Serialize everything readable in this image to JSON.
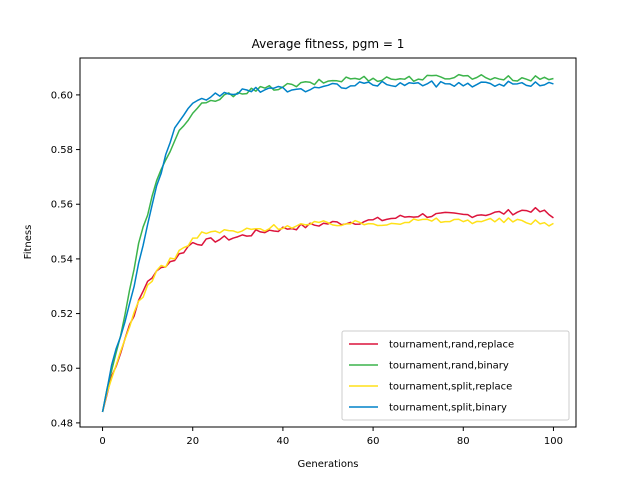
{
  "chart_data": {
    "type": "line",
    "title": "Average fitness, pgm = 1",
    "xlabel": "Generations",
    "ylabel": "Fitness",
    "xlim": [
      -5,
      105
    ],
    "ylim": [
      0.4785,
      0.6135
    ],
    "xticks": [
      0,
      20,
      40,
      60,
      80,
      100
    ],
    "xtick_labels": [
      "0",
      "20",
      "40",
      "60",
      "80",
      "100"
    ],
    "yticks": [
      0.48,
      0.5,
      0.52,
      0.54,
      0.56,
      0.58,
      0.6
    ],
    "ytick_labels": [
      "0.48",
      "0.50",
      "0.52",
      "0.54",
      "0.56",
      "0.58",
      "0.60"
    ],
    "grid": false,
    "legend_position": "lower-right",
    "x_start": 0,
    "x_end": 100,
    "series": [
      {
        "name": "tournament,rand,replace",
        "color": "#dc143c",
        "keypoints": [
          [
            0,
            0.484
          ],
          [
            2,
            0.497
          ],
          [
            4,
            0.506
          ],
          [
            6,
            0.516
          ],
          [
            8,
            0.524
          ],
          [
            10,
            0.532
          ],
          [
            12,
            0.535
          ],
          [
            14,
            0.538
          ],
          [
            16,
            0.54
          ],
          [
            18,
            0.543
          ],
          [
            20,
            0.546
          ],
          [
            22,
            0.546
          ],
          [
            25,
            0.547
          ],
          [
            30,
            0.548
          ],
          [
            35,
            0.55
          ],
          [
            40,
            0.551
          ],
          [
            50,
            0.553
          ],
          [
            60,
            0.554
          ],
          [
            70,
            0.556
          ],
          [
            80,
            0.556
          ],
          [
            90,
            0.557
          ],
          [
            95,
            0.558
          ],
          [
            98,
            0.557
          ],
          [
            100,
            0.555
          ]
        ]
      },
      {
        "name": "tournament,rand,binary",
        "color": "#3cb44b",
        "keypoints": [
          [
            0,
            0.484
          ],
          [
            2,
            0.5
          ],
          [
            4,
            0.512
          ],
          [
            6,
            0.528
          ],
          [
            8,
            0.545
          ],
          [
            10,
            0.557
          ],
          [
            12,
            0.568
          ],
          [
            14,
            0.576
          ],
          [
            16,
            0.584
          ],
          [
            18,
            0.589
          ],
          [
            20,
            0.593
          ],
          [
            22,
            0.596
          ],
          [
            25,
            0.598
          ],
          [
            30,
            0.601
          ],
          [
            35,
            0.602
          ],
          [
            40,
            0.603
          ],
          [
            45,
            0.604
          ],
          [
            50,
            0.605
          ],
          [
            55,
            0.606
          ],
          [
            60,
            0.606
          ],
          [
            70,
            0.606
          ],
          [
            80,
            0.607
          ],
          [
            90,
            0.606
          ],
          [
            100,
            0.606
          ]
        ]
      },
      {
        "name": "tournament,split,replace",
        "color": "#ffe119",
        "keypoints": [
          [
            0,
            0.484
          ],
          [
            2,
            0.496
          ],
          [
            4,
            0.506
          ],
          [
            6,
            0.516
          ],
          [
            8,
            0.524
          ],
          [
            10,
            0.53
          ],
          [
            12,
            0.535
          ],
          [
            14,
            0.538
          ],
          [
            16,
            0.541
          ],
          [
            18,
            0.544
          ],
          [
            20,
            0.547
          ],
          [
            22,
            0.549
          ],
          [
            25,
            0.55
          ],
          [
            30,
            0.55
          ],
          [
            35,
            0.551
          ],
          [
            40,
            0.552
          ],
          [
            50,
            0.553
          ],
          [
            60,
            0.553
          ],
          [
            70,
            0.554
          ],
          [
            80,
            0.554
          ],
          [
            90,
            0.554
          ],
          [
            100,
            0.553
          ]
        ]
      },
      {
        "name": "tournament,split,binary",
        "color": "#0082c8",
        "keypoints": [
          [
            0,
            0.484
          ],
          [
            2,
            0.502
          ],
          [
            4,
            0.511
          ],
          [
            6,
            0.524
          ],
          [
            8,
            0.538
          ],
          [
            10,
            0.553
          ],
          [
            12,
            0.566
          ],
          [
            14,
            0.578
          ],
          [
            16,
            0.587
          ],
          [
            18,
            0.592
          ],
          [
            20,
            0.596
          ],
          [
            22,
            0.598
          ],
          [
            25,
            0.6
          ],
          [
            30,
            0.601
          ],
          [
            35,
            0.602
          ],
          [
            40,
            0.602
          ],
          [
            45,
            0.602
          ],
          [
            50,
            0.603
          ],
          [
            60,
            0.604
          ],
          [
            70,
            0.604
          ],
          [
            80,
            0.604
          ],
          [
            90,
            0.604
          ],
          [
            100,
            0.604
          ]
        ]
      }
    ]
  }
}
